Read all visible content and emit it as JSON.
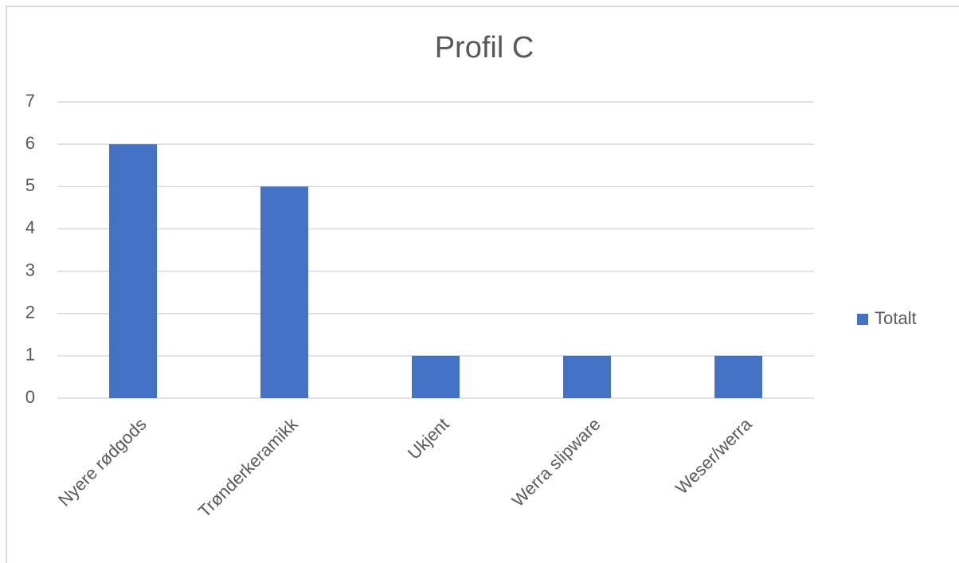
{
  "chart_data": {
    "type": "bar",
    "title": "Profil C",
    "categories": [
      "Nyere rødgods",
      "Trønderkeramikk",
      "Ukjent",
      "Werra slipware",
      "Weser/werra"
    ],
    "series": [
      {
        "name": "Totalt",
        "color": "#4472c4",
        "values": [
          6,
          5,
          1,
          1,
          1
        ]
      }
    ],
    "ylim": [
      0,
      7
    ],
    "yticks": [
      0,
      1,
      2,
      3,
      4,
      5,
      6,
      7
    ],
    "grid": true,
    "legend": "right"
  }
}
